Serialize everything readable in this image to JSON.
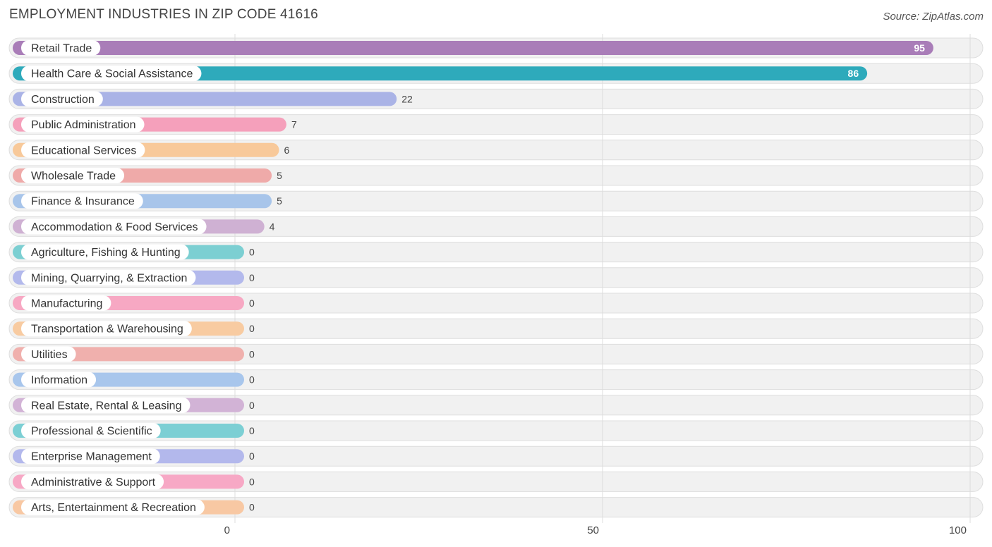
{
  "header": {
    "title": "EMPLOYMENT INDUSTRIES IN ZIP CODE 41616",
    "source": "Source: ZipAtlas.com"
  },
  "chart_data": {
    "type": "bar",
    "orientation": "horizontal",
    "title": "EMPLOYMENT INDUSTRIES IN ZIP CODE 41616",
    "xlabel": "",
    "ylabel": "",
    "xlim": [
      0,
      100
    ],
    "xticks": [
      0,
      50,
      100
    ],
    "grid": true,
    "categories": [
      "Retail Trade",
      "Health Care & Social Assistance",
      "Construction",
      "Public Administration",
      "Educational Services",
      "Wholesale Trade",
      "Finance & Insurance",
      "Accommodation & Food Services",
      "Agriculture, Fishing & Hunting",
      "Mining, Quarrying, & Extraction",
      "Manufacturing",
      "Transportation & Warehousing",
      "Utilities",
      "Information",
      "Real Estate, Rental & Leasing",
      "Professional & Scientific",
      "Enterprise Management",
      "Administrative & Support",
      "Arts, Entertainment & Recreation"
    ],
    "values": [
      95,
      86,
      22,
      7,
      6,
      5,
      5,
      4,
      0,
      0,
      0,
      0,
      0,
      0,
      0,
      0,
      0,
      0,
      0
    ],
    "colors": [
      "#a97db8",
      "#2eaabb",
      "#aab3e6",
      "#f5a0bb",
      "#f8c99a",
      "#efaaa9",
      "#a8c5ea",
      "#cfb1d3",
      "#7ccfd2",
      "#b3b9ec",
      "#f7a8c3",
      "#f8cba1",
      "#f0b0ad",
      "#a8c6ec",
      "#d2b3d6",
      "#7ccfd4",
      "#b3b8ec",
      "#f7a8c5",
      "#f8c8a3"
    ]
  }
}
